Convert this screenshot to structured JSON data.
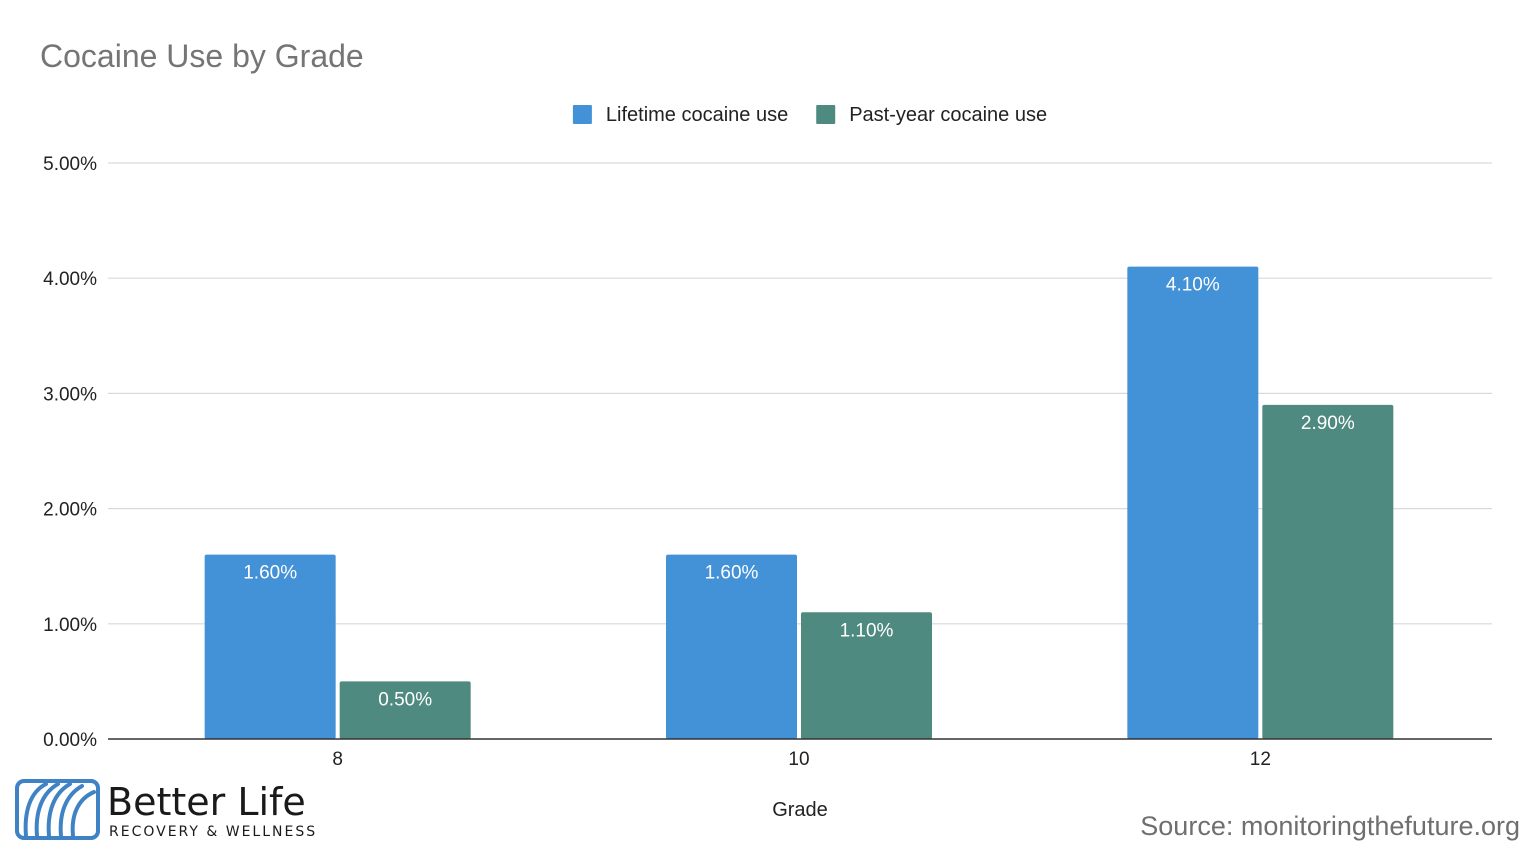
{
  "chart_data": {
    "type": "bar",
    "title": "Cocaine Use by Grade",
    "xlabel": "Grade",
    "ylabel": "",
    "categories": [
      "8",
      "10",
      "12"
    ],
    "series": [
      {
        "name": "Lifetime cocaine use",
        "values": [
          1.6,
          1.6,
          4.1
        ],
        "labels": [
          "1.60%",
          "1.60%",
          "4.10%"
        ],
        "color": "#4391d6"
      },
      {
        "name": "Past-year cocaine use",
        "values": [
          0.5,
          1.1,
          2.9
        ],
        "labels": [
          "0.50%",
          "1.10%",
          "2.90%"
        ],
        "color": "#4e8a7f"
      }
    ],
    "ylim": [
      0,
      5
    ],
    "yticks": [
      0,
      1,
      2,
      3,
      4,
      5
    ],
    "ytick_labels": [
      "0.00%",
      "1.00%",
      "2.00%",
      "3.00%",
      "4.00%",
      "5.00%"
    ],
    "grid": true,
    "legend": "top-center"
  },
  "branding": {
    "name": "Better Life",
    "tagline": "RECOVERY & WELLNESS"
  },
  "source": "Source: monitoringthefuture.org",
  "colors": {
    "gridline": "#d9d9d9",
    "axis": "#333333",
    "logo_blue": "#3f83c4"
  }
}
